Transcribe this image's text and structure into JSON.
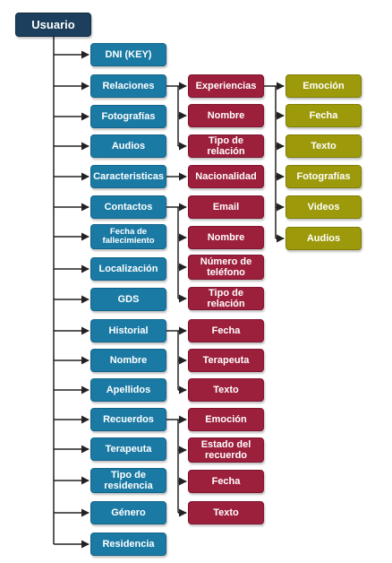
{
  "root": {
    "label": "Usuario"
  },
  "colors": {
    "root": "#1b3f5c",
    "level1": "#1a7aa4",
    "level2": "#9c1f3c",
    "level3": "#9c9a0a",
    "connector": "#222222"
  },
  "level1": [
    {
      "label": "DNI (KEY)"
    },
    {
      "label": "Relaciones"
    },
    {
      "label": "Fotografías"
    },
    {
      "label": "Audios"
    },
    {
      "label": "Caracteristicas"
    },
    {
      "label": "Contactos"
    },
    {
      "label": "Fecha de fallecimiento"
    },
    {
      "label": "Localización"
    },
    {
      "label": "GDS"
    },
    {
      "label": "Historial"
    },
    {
      "label": "Nombre"
    },
    {
      "label": "Apellidos"
    },
    {
      "label": "Recuerdos"
    },
    {
      "label": "Terapeuta"
    },
    {
      "label": "Tipo de residencia"
    },
    {
      "label": "Género"
    },
    {
      "label": "Residencia"
    }
  ],
  "relaciones": [
    {
      "label": "Experiencias"
    },
    {
      "label": "Nombre"
    },
    {
      "label": "Tipo de relación"
    }
  ],
  "experiencias": [
    {
      "label": "Emoción"
    },
    {
      "label": "Fecha"
    },
    {
      "label": "Texto"
    },
    {
      "label": "Fotografías"
    },
    {
      "label": "Videos"
    },
    {
      "label": "Audios"
    }
  ],
  "caracteristicas": [
    {
      "label": "Nacionalidad"
    }
  ],
  "contactos": [
    {
      "label": "Email"
    },
    {
      "label": "Nombre"
    },
    {
      "label": "Número de teléfono"
    },
    {
      "label": "Tipo de relación"
    }
  ],
  "historial": [
    {
      "label": "Fecha"
    },
    {
      "label": "Terapeuta"
    },
    {
      "label": "Texto"
    }
  ],
  "recuerdos": [
    {
      "label": "Emoción"
    },
    {
      "label": "Estado del recuerdo"
    },
    {
      "label": "Fecha"
    },
    {
      "label": "Texto"
    }
  ]
}
